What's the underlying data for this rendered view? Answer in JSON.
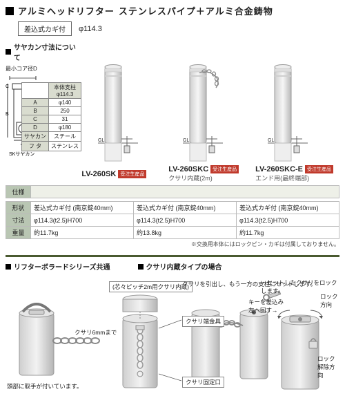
{
  "header": {
    "title_product": "アルミヘッドリフター",
    "title_material": "ステンレスパイプ＋アルミ合金鋳物",
    "option_label": "差込式カギ付",
    "diameter": "φ114.3"
  },
  "sleeve": {
    "section_title": "サヤカン寸法について",
    "min_core": "最小コア径D",
    "body_col": "本体支柱\nφ114.3",
    "rows": [
      {
        "k": "A",
        "v": "φ140"
      },
      {
        "k": "B",
        "v": "250"
      },
      {
        "k": "C",
        "v": "31"
      },
      {
        "k": "D",
        "v": "φ180"
      }
    ],
    "sayakan_label": "サヤカン",
    "sayakan_val": "スチール",
    "lid_label": "フ タ",
    "lid_val": "ステンレス",
    "diag_label": "SKサヤカン"
  },
  "products": [
    {
      "model": "LV-260SK",
      "badge": "受注生産品",
      "sub": "",
      "chain": false
    },
    {
      "model": "LV-260SKC",
      "badge": "受注生産品",
      "sub": "クサリ内蔵(2m)",
      "chain": true
    },
    {
      "model": "LV-260SKC-E",
      "badge": "受注生産品",
      "sub": "エンド用(最終端部)",
      "chain": false
    }
  ],
  "spec": {
    "header": "仕様",
    "rows": [
      {
        "label": "形状",
        "cells": [
          "差込式カギ付 (南京錠40mm)",
          "差込式カギ付 (南京錠40mm)",
          "差込式カギ付 (南京錠40mm)"
        ]
      },
      {
        "label": "寸法",
        "cells": [
          "φ114.3(t2.5)H700",
          "φ114.3(t2.5)H700",
          "φ114.3(t2.5)H700"
        ]
      },
      {
        "label": "重量",
        "cells": [
          "約11.7kg",
          "約13.8kg",
          "約11.7kg"
        ]
      }
    ],
    "footnote": "※交換用本体にはロックピン・カギは付属しておりません。"
  },
  "lower": {
    "title_left": "リフターボラードシリーズ共通",
    "title_right": "クサリ内蔵タイプの場合",
    "callout_handle": "頭部に取手が付いています。",
    "callout_chain6": "クサリ6mmまで",
    "callout_pitch": "(芯々ピッチ2m用クサリ内蔵)",
    "callout_chain_pull": "クサリを引出し、もう一方の支柱にセットします。",
    "callout_term": "クサリ端金具",
    "callout_fix": "クサリ固定口",
    "callout_lock": "・セットしたクサリをロックします。",
    "callout_key": "キーを差込み\n左へ回す→",
    "callout_lockdir": "ロック方向",
    "callout_unlock": "ロック\n解除方向"
  },
  "style": {
    "accent": "#4a5a30",
    "metal_light": "#e6e6e6",
    "metal_mid": "#cfcfcf",
    "metal_dark": "#b5b5b5"
  }
}
